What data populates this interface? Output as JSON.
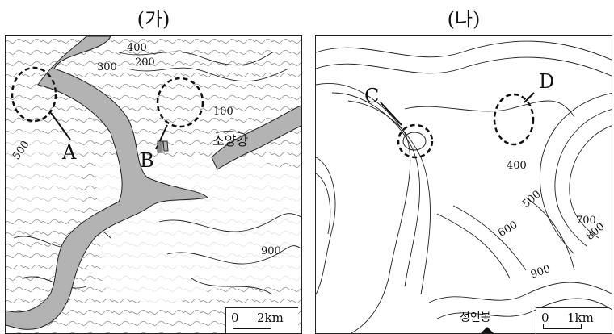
{
  "panel_ga": {
    "title": "(가)",
    "region_a": "A",
    "region_b": "B",
    "river_name": "소양강",
    "contours": [
      "400",
      "300",
      "200",
      "100",
      "500",
      "900"
    ],
    "scale_zero": "0",
    "scale_dist": "2km"
  },
  "panel_na": {
    "title": "(나)",
    "region_c": "C",
    "region_d": "D",
    "contours": [
      "400",
      "500",
      "600",
      "700",
      "800",
      "900"
    ],
    "peak_name": "성인봉",
    "scale_zero": "0",
    "scale_dist": "1km"
  },
  "colors": {
    "river": "#b3b3b3",
    "contour": "#222222",
    "background": "#ffffff"
  }
}
